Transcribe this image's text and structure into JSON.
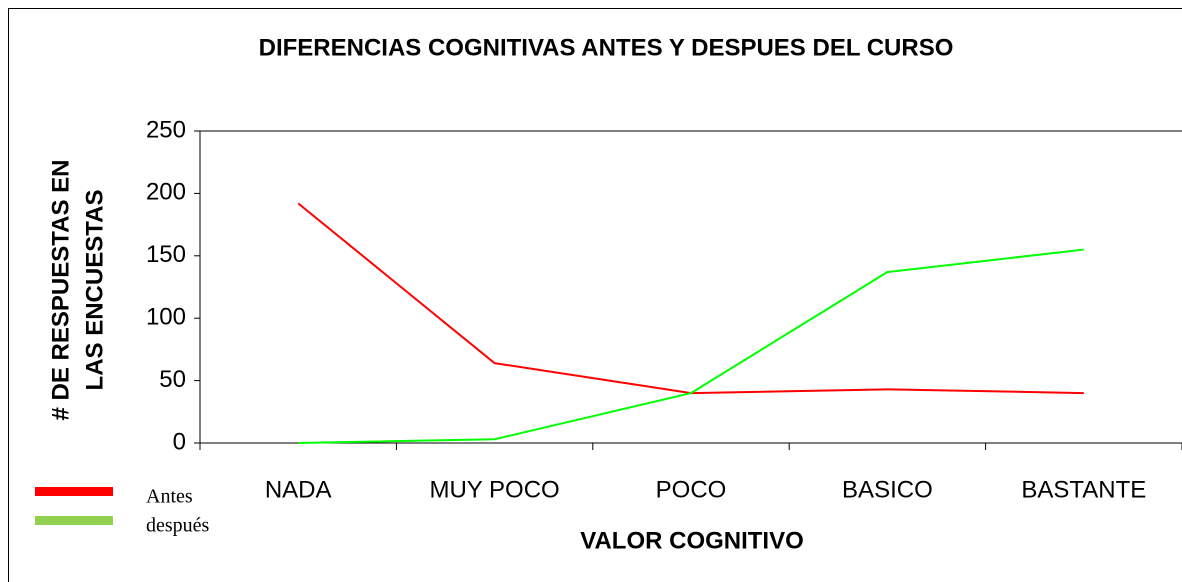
{
  "chart_data": {
    "type": "line",
    "title": "DIFERENCIAS COGNITIVAS ANTES Y DESPUES DEL CURSO",
    "x_label": "VALOR COGNITIVO",
    "y_label": [
      "# DE RESPUESTAS EN",
      "LAS ENCUESTAS"
    ],
    "categories": [
      "NADA",
      "MUY POCO",
      "POCO",
      "BASICO",
      "BASTANTE"
    ],
    "series": [
      {
        "name": "Antes",
        "color": "#ff0000",
        "legend_color": "#ff0000",
        "values": [
          192,
          64,
          40,
          43,
          40
        ]
      },
      {
        "name": "después",
        "color": "#00ff00",
        "legend_color": "#92d050",
        "values": [
          0,
          3,
          40,
          137,
          155
        ]
      }
    ],
    "ylim": [
      0,
      250
    ],
    "yticks": [
      0,
      50,
      100,
      150,
      200,
      250
    ],
    "legend": "bottom-left"
  }
}
